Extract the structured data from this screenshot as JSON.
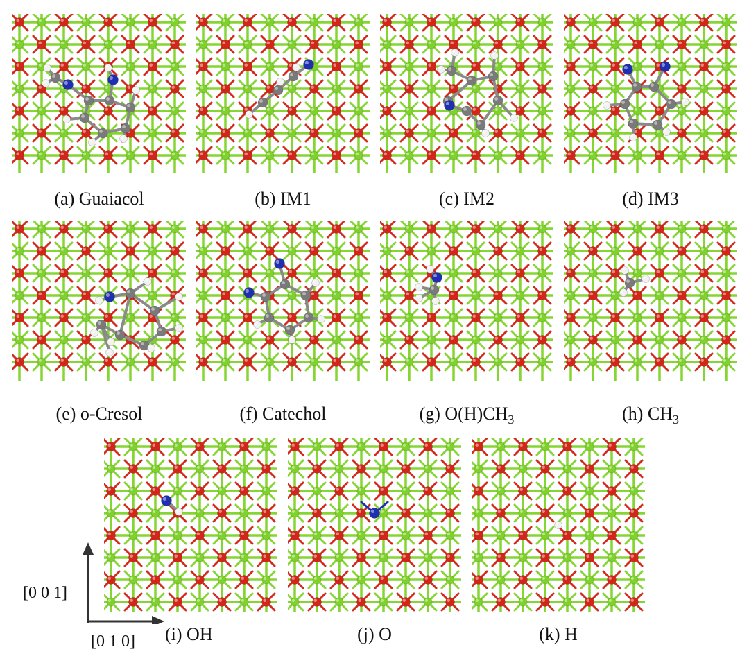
{
  "figure": {
    "panels": [
      {
        "id": "a",
        "caption": "(a) Guaiacol",
        "adsorbate": "guaiacol"
      },
      {
        "id": "b",
        "caption": "(b) IM1",
        "adsorbate": "im1"
      },
      {
        "id": "c",
        "caption": "(c) IM2",
        "adsorbate": "im2"
      },
      {
        "id": "d",
        "caption": "(d) IM3",
        "adsorbate": "im3"
      },
      {
        "id": "e",
        "caption": "(e) o-Cresol",
        "adsorbate": "cresol"
      },
      {
        "id": "f",
        "caption": "(f) Catechol",
        "adsorbate": "catechol"
      },
      {
        "id": "g",
        "caption_prefix": "(g) O(H)CH",
        "caption_sub": "3",
        "adsorbate": "ohch3"
      },
      {
        "id": "h",
        "caption_prefix": "(h) CH",
        "caption_sub": "3",
        "adsorbate": "ch3"
      },
      {
        "id": "i",
        "caption": "(i) OH",
        "adsorbate": "oh"
      },
      {
        "id": "j",
        "caption": "(j) O",
        "adsorbate": "o"
      },
      {
        "id": "k",
        "caption": "(k) H",
        "adsorbate": "h"
      }
    ],
    "axes": {
      "vertical_label": "[0 0 1]",
      "horizontal_label": "[0 1 0]"
    }
  },
  "colors": {
    "lattice_bond_green": "#86d633",
    "lattice_bond_red": "#d42a1c",
    "atom_red": "#d3261a",
    "atom_green": "#7fd22c",
    "carbon": "#7a7a7a",
    "oxygen_adsorbate": "#1f2fb0",
    "hydrogen": "#f2f2f2",
    "axis_arrow": "#333333"
  }
}
